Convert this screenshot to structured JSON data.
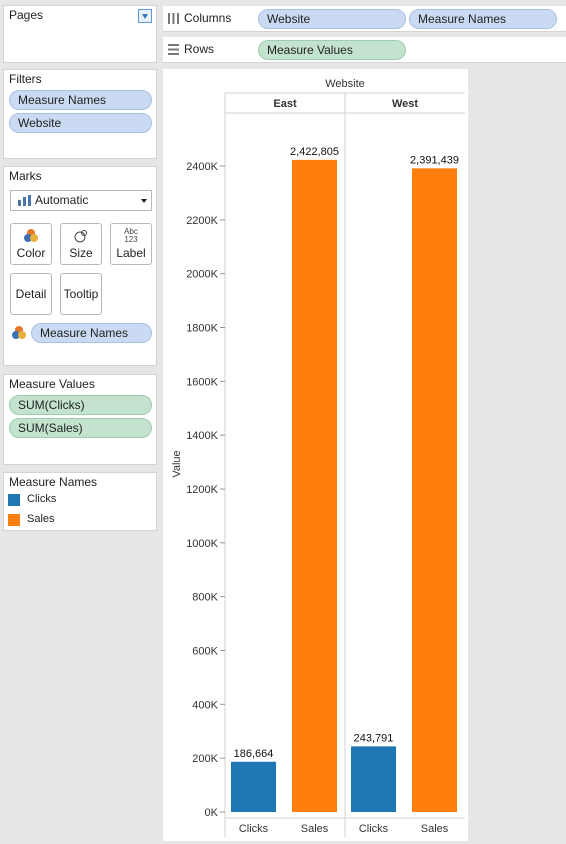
{
  "pages": {
    "title": "Pages"
  },
  "shelves": {
    "columns": {
      "label": "Columns",
      "pills": [
        "Website",
        "Measure Names"
      ]
    },
    "rows": {
      "label": "Rows",
      "pills": [
        "Measure Values"
      ]
    }
  },
  "filters": {
    "title": "Filters",
    "pills": [
      "Measure Names",
      "Website"
    ]
  },
  "marks": {
    "title": "Marks",
    "mark_type": "Automatic",
    "buttons": {
      "color": "Color",
      "size": "Size",
      "label": "Label",
      "detail": "Detail",
      "tooltip": "Tooltip"
    },
    "label_icon_text": "Abc 123",
    "color_pill": "Measure Names"
  },
  "measure_values": {
    "title": "Measure Values",
    "pills": [
      "SUM(Clicks)",
      "SUM(Sales)"
    ]
  },
  "legend": {
    "title": "Measure Names",
    "items": [
      {
        "label": "Clicks",
        "color": "#1f77b4"
      },
      {
        "label": "Sales",
        "color": "#ff7f0e"
      }
    ]
  },
  "colors": {
    "clicks": "#1f77b4",
    "sales": "#ff7f0e",
    "pill_blue": "#c9daf2",
    "pill_green": "#c3e3ce"
  },
  "chart_data": {
    "type": "bar",
    "title": "Website",
    "ylabel": "Value",
    "xlabel": "",
    "panels": [
      "East",
      "West"
    ],
    "categories": [
      "Clicks",
      "Sales"
    ],
    "values": {
      "East": {
        "Clicks": 186664,
        "Sales": 2422805
      },
      "West": {
        "Clicks": 243791,
        "Sales": 2391439
      }
    },
    "data_labels": {
      "East": {
        "Clicks": "186,664",
        "Sales": "2,422,805"
      },
      "West": {
        "Clicks": "243,791",
        "Sales": "2,391,439"
      }
    },
    "ylim": [
      0,
      2400000
    ],
    "yticks": [
      0,
      200000,
      400000,
      600000,
      800000,
      1000000,
      1200000,
      1400000,
      1600000,
      1800000,
      2000000,
      2200000,
      2400000
    ],
    "ytick_labels": [
      "0K",
      "200K",
      "400K",
      "600K",
      "800K",
      "1000K",
      "1200K",
      "1400K",
      "1600K",
      "1800K",
      "2000K",
      "2200K",
      "2400K"
    ],
    "grid": false,
    "legend": "left panel"
  }
}
